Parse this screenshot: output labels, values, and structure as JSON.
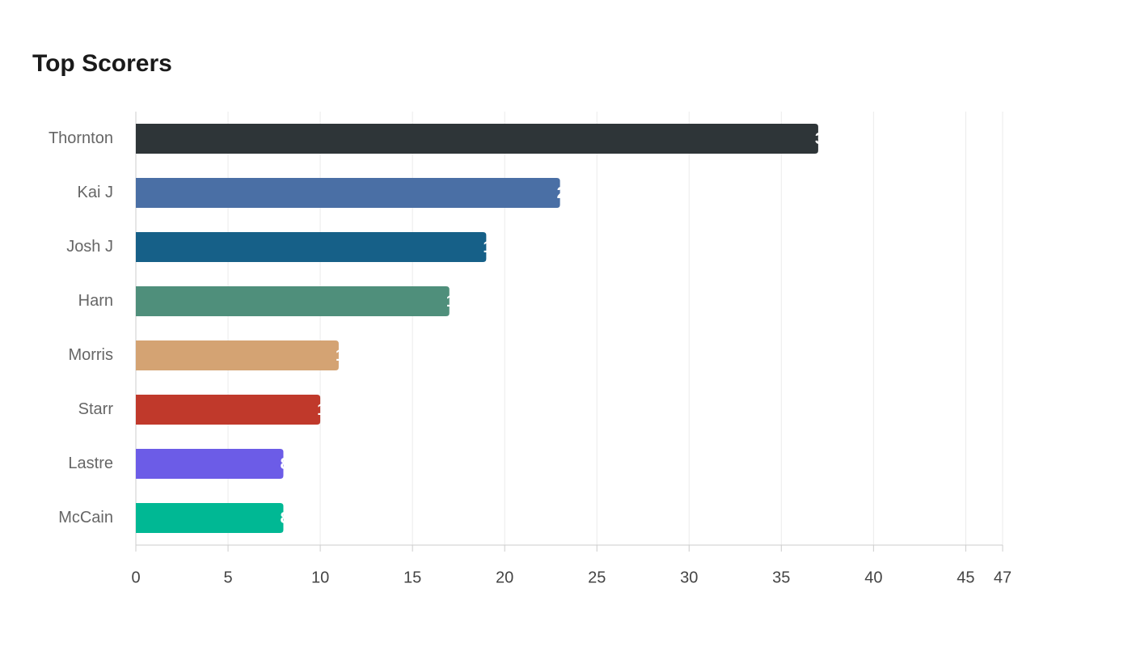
{
  "chart_data": {
    "type": "bar",
    "orientation": "horizontal",
    "title": "Top Scorers",
    "categories": [
      "Thornton",
      "Kai J",
      "Josh J",
      "Harn",
      "Morris",
      "Starr",
      "Lastre",
      "McCain"
    ],
    "values": [
      37,
      23,
      19,
      17,
      11,
      10,
      8,
      8
    ],
    "colors": [
      "#2e3538",
      "#4a6fa5",
      "#166088",
      "#4f8f7b",
      "#d4a373",
      "#c0392b",
      "#6c5ce7",
      "#00b894"
    ],
    "xlim": [
      0,
      47
    ],
    "xticks": [
      0,
      5,
      10,
      15,
      20,
      25,
      30,
      35,
      40,
      45,
      47
    ],
    "grid": true
  }
}
